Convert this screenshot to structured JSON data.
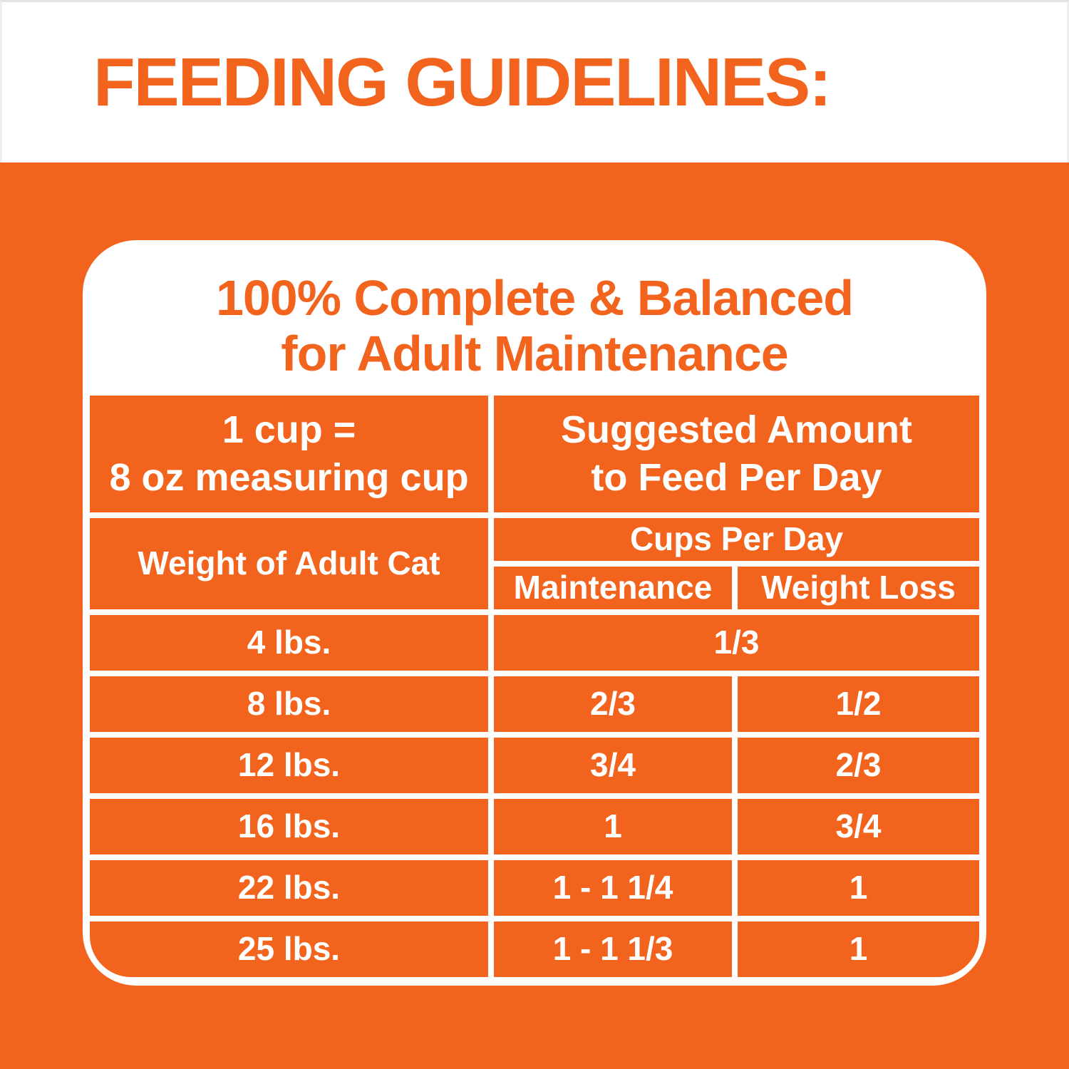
{
  "page_title": "FEEDING GUIDELINES:",
  "panel": {
    "heading_line1": "100% Complete & Balanced",
    "heading_line2": "for Adult Maintenance"
  },
  "table": {
    "cup_note_line1": "1 cup =",
    "cup_note_line2": "8 oz measuring cup",
    "suggested_line1": "Suggested Amount",
    "suggested_line2": "to Feed Per Day",
    "weight_header": "Weight of Adult Cat",
    "cups_per_day_header": "Cups Per Day",
    "col_maintenance": "Maintenance",
    "col_weight_loss": "Weight Loss",
    "rows": [
      {
        "weight": "4 lbs.",
        "maintenance": "1/3",
        "weight_loss": "",
        "spans_both_columns": true
      },
      {
        "weight": "8 lbs.",
        "maintenance": "2/3",
        "weight_loss": "1/2",
        "spans_both_columns": false
      },
      {
        "weight": "12 lbs.",
        "maintenance": "3/4",
        "weight_loss": "2/3",
        "spans_both_columns": false
      },
      {
        "weight": "16 lbs.",
        "maintenance": "1",
        "weight_loss": "3/4",
        "spans_both_columns": false
      },
      {
        "weight": "22 lbs.",
        "maintenance": "1 - 1 1/4",
        "weight_loss": "1",
        "spans_both_columns": false
      },
      {
        "weight": "25 lbs.",
        "maintenance": "1 - 1 1/3",
        "weight_loss": "1",
        "spans_both_columns": false
      }
    ]
  },
  "colors": {
    "brand_orange": "#F2641E",
    "panel_white": "#FFFFFF",
    "cell_text_white": "#FFFFFF"
  }
}
